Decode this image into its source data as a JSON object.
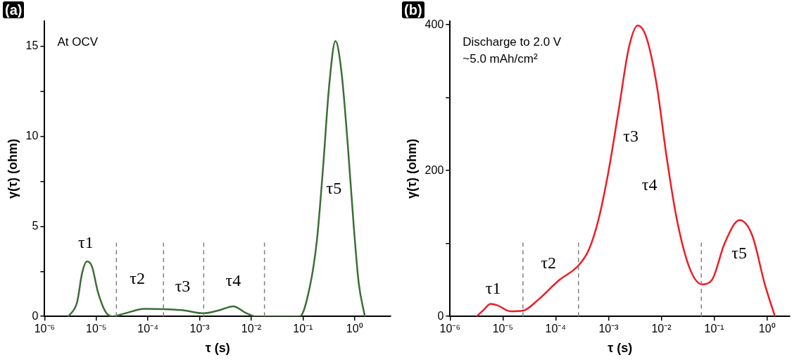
{
  "chart_data": [
    {
      "type": "line",
      "title": "(a)",
      "xlabel": "τ (s)",
      "ylabel": "γ(τ) (ohm)",
      "log": "x",
      "grid": false,
      "legend": false,
      "marker": "none",
      "x": [
        2.9e-06,
        4.26e-06,
        5.3e-06,
        6.59e-06,
        8.2e-06,
        1.08e-05,
        1.5e-05,
        2.08e-05,
        3.24e-05,
        8.67e-05,
        0.000208,
        0.000501,
        0.0012,
        0.00233,
        0.00449,
        0.00776,
        0.012,
        0.0867,
        0.135,
        0.187,
        0.245,
        0.324,
        0.426,
        0.558,
        0.736,
        0.968,
        1.2,
        1.58
      ],
      "series": [
        {
          "color": "#3b6e35",
          "values": [
            0,
            0.8,
            2.39,
            3.05,
            2.79,
            1.33,
            0.27,
            0,
            0.13,
            0.42,
            0.4,
            0.33,
            0.17,
            0.33,
            0.56,
            0.2,
            0,
            0,
            1.6,
            4.26,
            8.25,
            12.9,
            15.29,
            13.56,
            9.57,
            4.93,
            1.87,
            0
          ]
        }
      ],
      "xlim": [
        1e-06,
        5
      ],
      "ylim": [
        0,
        16.4
      ],
      "xticks": [
        {
          "value": 1e-06,
          "label": "10⁻⁶"
        },
        {
          "value": 1e-05,
          "label": "10⁻⁵"
        },
        {
          "value": 0.0001,
          "label": "10⁻⁴"
        },
        {
          "value": 0.001,
          "label": "10⁻³"
        },
        {
          "value": 0.01,
          "label": "10⁻²"
        },
        {
          "value": 0.1,
          "label": "10⁻¹"
        },
        {
          "value": 1,
          "label": "10⁰"
        }
      ],
      "yticks": [
        0,
        {
          "value": 2.5,
          "label": null
        },
        5,
        {
          "value": 7.5,
          "label": null
        },
        10,
        {
          "value": 12.5,
          "label": null
        },
        15
      ],
      "ref_lines": [
        {
          "axis": "x",
          "value": 2.45e-05,
          "color": "#808080",
          "line_style": "dashed"
        },
        {
          "axis": "x",
          "value": 0.0002,
          "color": "#808080",
          "line_style": "dashed"
        },
        {
          "axis": "x",
          "value": 0.0012,
          "color": "#808080",
          "line_style": "dashed"
        },
        {
          "axis": "x",
          "value": 0.018,
          "color": "#808080",
          "line_style": "dashed"
        }
      ],
      "annotations": [
        "At OCV",
        "τ1",
        "τ2",
        "τ3",
        "τ4",
        "τ5"
      ]
    },
    {
      "type": "line",
      "title": "(b)",
      "xlabel": "τ (s)",
      "ylabel": "γ(τ) (ohm)",
      "log": "x",
      "grid": false,
      "legend": false,
      "marker": "none",
      "x": [
        3.2e-06,
        4.21e-06,
        5.85e-06,
        7.94e-06,
        1.38e-05,
        2.43e-05,
        4.69e-05,
        0.000113,
        0.000271,
        0.000421,
        0.000652,
        0.00101,
        0.00157,
        0.00243,
        0.00356,
        0.00524,
        0.00813,
        0.0126,
        0.0195,
        0.0339,
        0.0585,
        0.0906,
        0.157,
        0.302,
        0.524,
        0.906,
        1.41
      ],
      "series": [
        {
          "color": "#ee1c25",
          "values": [
            0,
            8,
            17,
            15,
            7,
            8,
            23,
            49,
            70,
            91,
            134,
            201,
            285,
            369,
            399,
            382,
            318,
            218,
            134,
            67,
            44,
            50,
            100,
            132,
            111,
            44,
            0
          ]
        }
      ],
      "xlim": [
        1e-06,
        2.7
      ],
      "ylim": [
        0,
        405
      ],
      "xticks": [
        {
          "value": 1e-06,
          "label": "10⁻⁶"
        },
        {
          "value": 1e-05,
          "label": "10⁻⁵"
        },
        {
          "value": 0.0001,
          "label": "10⁻⁴"
        },
        {
          "value": 0.001,
          "label": "10⁻³"
        },
        {
          "value": 0.01,
          "label": "10⁻²"
        },
        {
          "value": 0.1,
          "label": "10⁻¹"
        },
        {
          "value": 1,
          "label": "10⁰"
        }
      ],
      "yticks": [
        0,
        {
          "value": 100,
          "label": null
        },
        200,
        {
          "value": 300,
          "label": null
        },
        400
      ],
      "ref_lines": [
        {
          "axis": "x",
          "value": 2.4e-05,
          "color": "#808080",
          "line_style": "dashed"
        },
        {
          "axis": "x",
          "value": 0.00027,
          "color": "#808080",
          "line_style": "dashed"
        },
        {
          "axis": "x",
          "value": 0.057,
          "color": "#808080",
          "line_style": "dashed"
        }
      ],
      "annotations": [
        "Discharge to 2.0 V",
        "~5.0 mAh/cm²",
        "τ1",
        "τ2",
        "τ3",
        "τ4",
        "τ5"
      ]
    }
  ]
}
